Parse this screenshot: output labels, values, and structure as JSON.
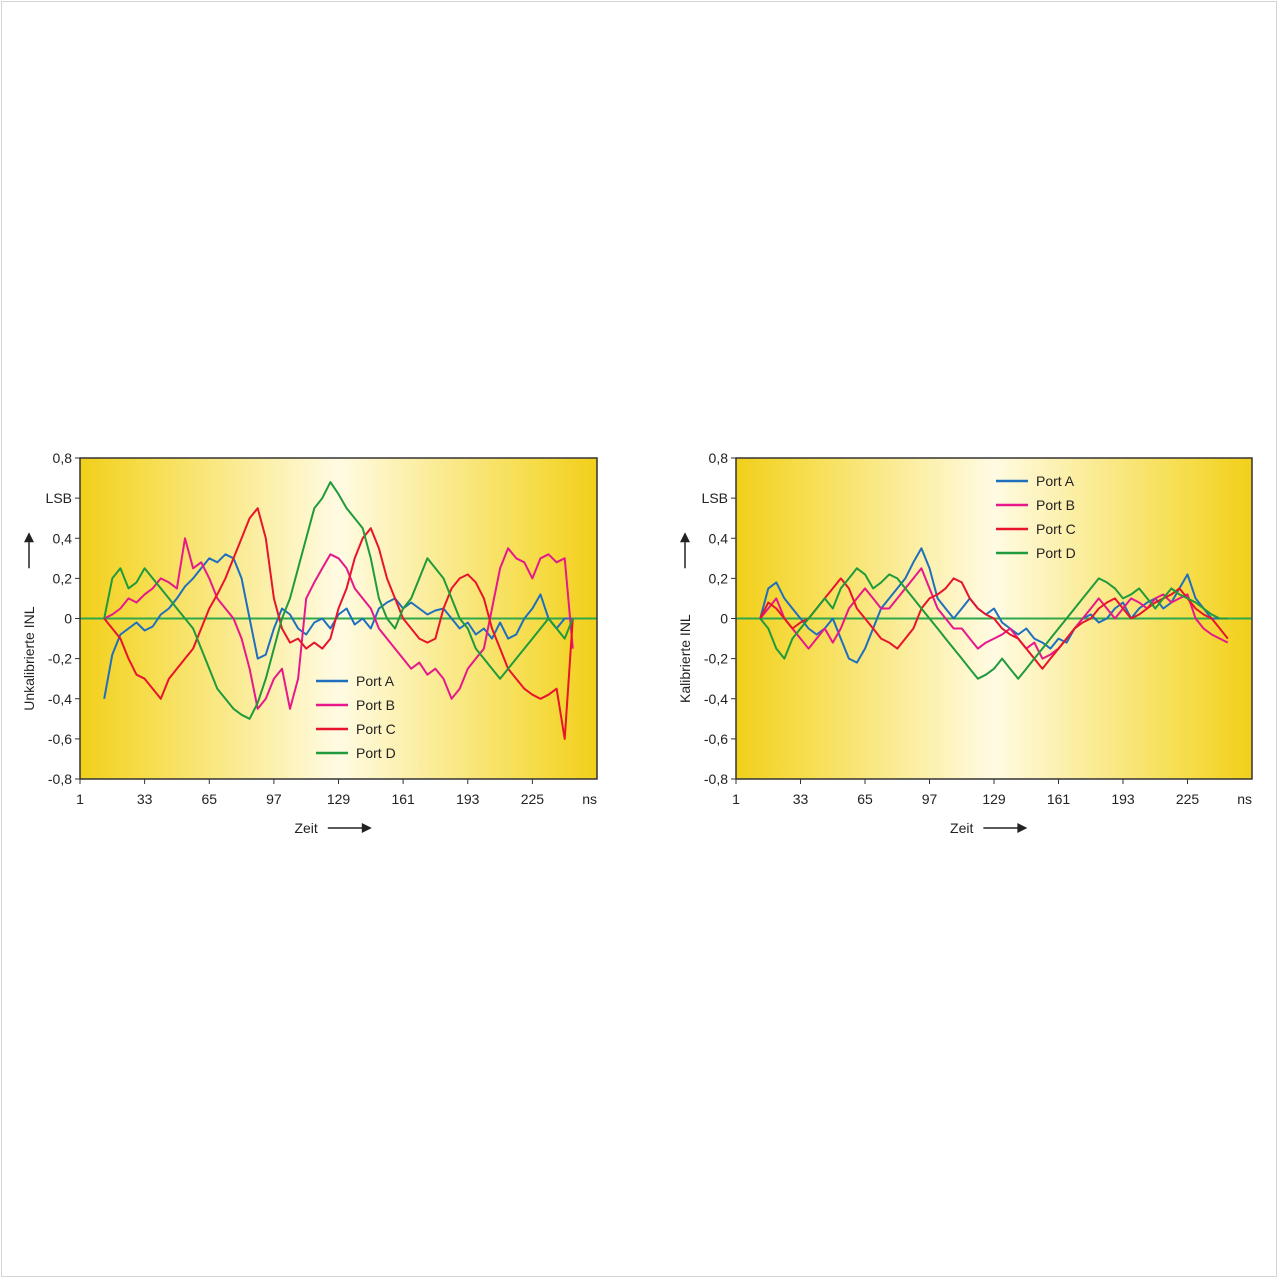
{
  "charts": [
    {
      "ylabel": "Unkalibrierte INL",
      "y_unit": "LSB",
      "xlabel": "Zeit",
      "x_unit": "ns",
      "legend": [
        "Port A",
        "Port B",
        "Port C",
        "Port D"
      ]
    },
    {
      "ylabel": "Kalibrierte INL",
      "y_unit": "LSB",
      "xlabel": "Zeit",
      "x_unit": "ns",
      "legend": [
        "Port A",
        "Port B",
        "Port C",
        "Port D"
      ]
    }
  ],
  "colors": {
    "Port A": "#1f6fbf",
    "Port B": "#e6188c",
    "Port C": "#e8142c",
    "Port D": "#1f9a3c",
    "zero_line": "#2ea84a",
    "panel_edge": "#f2cf1a",
    "panel_center": "#fffbe3"
  },
  "chart_data": [
    {
      "type": "line",
      "x_ticks": [
        1,
        33,
        65,
        97,
        129,
        161,
        193,
        225
      ],
      "y_ticks": [
        -0.8,
        -0.6,
        -0.4,
        -0.2,
        0,
        0.2,
        0.4,
        0.8
      ],
      "y_tick_labels": [
        "-0,8",
        "-0,6",
        "-0,4",
        "-0,2",
        "0",
        "0,2",
        "0,4",
        "0,8"
      ],
      "ylim": [
        -0.8,
        0.8
      ],
      "xlim": [
        1,
        257
      ],
      "legend_position": "bottom-center",
      "x": [
        13,
        17,
        21,
        25,
        29,
        33,
        37,
        41,
        45,
        49,
        53,
        57,
        61,
        65,
        69,
        73,
        77,
        81,
        85,
        89,
        93,
        97,
        101,
        105,
        109,
        113,
        117,
        121,
        125,
        129,
        133,
        137,
        141,
        145,
        149,
        153,
        157,
        161,
        165,
        169,
        173,
        177,
        181,
        185,
        189,
        193,
        197,
        201,
        205,
        209,
        213,
        217,
        221,
        225,
        229,
        233,
        237,
        241,
        245
      ],
      "series": [
        {
          "name": "Port A",
          "values": [
            -0.4,
            -0.18,
            -0.08,
            -0.05,
            -0.02,
            -0.06,
            -0.04,
            0.02,
            0.05,
            0.1,
            0.16,
            0.2,
            0.25,
            0.3,
            0.28,
            0.32,
            0.3,
            0.2,
            0.0,
            -0.2,
            -0.18,
            -0.05,
            0.05,
            0.02,
            -0.05,
            -0.08,
            -0.02,
            0.0,
            -0.05,
            0.02,
            0.05,
            -0.03,
            0.0,
            -0.05,
            0.05,
            0.08,
            0.1,
            0.05,
            0.08,
            0.05,
            0.02,
            0.04,
            0.05,
            0.0,
            -0.05,
            -0.02,
            -0.08,
            -0.05,
            -0.1,
            -0.02,
            -0.1,
            -0.08,
            0.0,
            0.05,
            0.12,
            0.0,
            -0.05,
            0.0,
            0.0
          ]
        },
        {
          "name": "Port B",
          "values": [
            0.0,
            0.02,
            0.05,
            0.1,
            0.08,
            0.12,
            0.15,
            0.2,
            0.18,
            0.15,
            0.4,
            0.25,
            0.28,
            0.2,
            0.1,
            0.05,
            0.0,
            -0.1,
            -0.25,
            -0.45,
            -0.4,
            -0.3,
            -0.25,
            -0.45,
            -0.3,
            0.1,
            0.18,
            0.25,
            0.32,
            0.3,
            0.25,
            0.15,
            0.1,
            0.05,
            -0.05,
            -0.1,
            -0.15,
            -0.2,
            -0.25,
            -0.22,
            -0.28,
            -0.25,
            -0.3,
            -0.4,
            -0.35,
            -0.25,
            -0.2,
            -0.15,
            0.05,
            0.25,
            0.35,
            0.3,
            0.28,
            0.2,
            0.3,
            0.32,
            0.28,
            0.3,
            -0.15
          ]
        },
        {
          "name": "Port C",
          "values": [
            0.0,
            -0.05,
            -0.1,
            -0.2,
            -0.28,
            -0.3,
            -0.35,
            -0.4,
            -0.3,
            -0.25,
            -0.2,
            -0.15,
            -0.05,
            0.05,
            0.12,
            0.2,
            0.3,
            0.4,
            0.5,
            0.55,
            0.4,
            0.1,
            -0.05,
            -0.12,
            -0.1,
            -0.15,
            -0.12,
            -0.15,
            -0.1,
            0.05,
            0.15,
            0.3,
            0.4,
            0.45,
            0.35,
            0.2,
            0.1,
            0.0,
            -0.05,
            -0.1,
            -0.12,
            -0.1,
            0.05,
            0.15,
            0.2,
            0.22,
            0.18,
            0.1,
            -0.05,
            -0.15,
            -0.25,
            -0.3,
            -0.35,
            -0.38,
            -0.4,
            -0.38,
            -0.35,
            -0.6,
            0.0
          ]
        },
        {
          "name": "Port D",
          "values": [
            0.0,
            0.2,
            0.25,
            0.15,
            0.18,
            0.25,
            0.2,
            0.15,
            0.1,
            0.05,
            0.0,
            -0.05,
            -0.15,
            -0.25,
            -0.35,
            -0.4,
            -0.45,
            -0.48,
            -0.5,
            -0.42,
            -0.3,
            -0.15,
            0.0,
            0.1,
            0.25,
            0.4,
            0.55,
            0.6,
            0.68,
            0.62,
            0.55,
            0.5,
            0.45,
            0.3,
            0.1,
            0.0,
            -0.05,
            0.05,
            0.1,
            0.2,
            0.3,
            0.25,
            0.2,
            0.1,
            0.0,
            -0.05,
            -0.15,
            -0.2,
            -0.25,
            -0.3,
            -0.25,
            -0.2,
            -0.15,
            -0.1,
            -0.05,
            0.0,
            -0.05,
            -0.1,
            0.0
          ]
        }
      ]
    },
    {
      "type": "line",
      "x_ticks": [
        1,
        33,
        65,
        97,
        129,
        161,
        193,
        225
      ],
      "y_ticks": [
        -0.8,
        -0.6,
        -0.4,
        -0.2,
        0,
        0.2,
        0.4,
        0.8
      ],
      "y_tick_labels": [
        "-0,8",
        "-0,6",
        "-0,4",
        "-0,2",
        "0",
        "0,2",
        "0,4",
        "0,8"
      ],
      "ylim": [
        -0.8,
        0.8
      ],
      "xlim": [
        1,
        257
      ],
      "legend_position": "top-center",
      "x": [
        13,
        17,
        21,
        25,
        29,
        33,
        37,
        41,
        45,
        49,
        53,
        57,
        61,
        65,
        69,
        73,
        77,
        81,
        85,
        89,
        93,
        97,
        101,
        105,
        109,
        113,
        117,
        121,
        125,
        129,
        133,
        137,
        141,
        145,
        149,
        153,
        157,
        161,
        165,
        169,
        173,
        177,
        181,
        185,
        189,
        193,
        197,
        201,
        205,
        209,
        213,
        217,
        221,
        225,
        229,
        233,
        237,
        241,
        245
      ],
      "series": [
        {
          "name": "Port A",
          "values": [
            0.0,
            0.15,
            0.18,
            0.1,
            0.05,
            0.0,
            -0.05,
            -0.08,
            -0.05,
            0.0,
            -0.1,
            -0.2,
            -0.22,
            -0.15,
            -0.05,
            0.05,
            0.1,
            0.15,
            0.2,
            0.28,
            0.35,
            0.25,
            0.1,
            0.05,
            0.0,
            0.05,
            0.1,
            0.05,
            0.02,
            0.05,
            -0.02,
            -0.05,
            -0.08,
            -0.05,
            -0.1,
            -0.12,
            -0.15,
            -0.1,
            -0.12,
            -0.05,
            0.0,
            0.02,
            -0.02,
            0.0,
            0.05,
            0.08,
            0.0,
            0.05,
            0.08,
            0.1,
            0.05,
            0.08,
            0.15,
            0.22,
            0.1,
            0.05,
            0.0,
            0.0,
            0.0
          ]
        },
        {
          "name": "Port B",
          "values": [
            0.0,
            0.05,
            0.1,
            0.0,
            -0.05,
            -0.1,
            -0.15,
            -0.1,
            -0.05,
            -0.12,
            -0.05,
            0.05,
            0.1,
            0.15,
            0.1,
            0.05,
            0.05,
            0.1,
            0.15,
            0.2,
            0.25,
            0.15,
            0.05,
            0.0,
            -0.05,
            -0.05,
            -0.1,
            -0.15,
            -0.12,
            -0.1,
            -0.08,
            -0.05,
            -0.1,
            -0.15,
            -0.12,
            -0.2,
            -0.18,
            -0.15,
            -0.1,
            -0.05,
            0.0,
            0.05,
            0.1,
            0.05,
            0.0,
            0.05,
            0.1,
            0.08,
            0.05,
            0.1,
            0.12,
            0.08,
            0.1,
            0.12,
            0.0,
            -0.05,
            -0.08,
            -0.1,
            -0.12
          ]
        },
        {
          "name": "Port C",
          "values": [
            0.0,
            0.08,
            0.05,
            0.0,
            -0.05,
            -0.02,
            0.0,
            0.05,
            0.1,
            0.15,
            0.2,
            0.15,
            0.05,
            0.0,
            -0.05,
            -0.1,
            -0.12,
            -0.15,
            -0.1,
            -0.05,
            0.05,
            0.1,
            0.12,
            0.15,
            0.2,
            0.18,
            0.1,
            0.05,
            0.02,
            0.0,
            -0.05,
            -0.08,
            -0.1,
            -0.15,
            -0.2,
            -0.25,
            -0.2,
            -0.15,
            -0.1,
            -0.05,
            -0.02,
            0.0,
            0.05,
            0.08,
            0.1,
            0.05,
            0.0,
            0.02,
            0.05,
            0.08,
            0.1,
            0.12,
            0.15,
            0.1,
            0.05,
            0.02,
            0.0,
            -0.05,
            -0.1
          ]
        },
        {
          "name": "Port D",
          "values": [
            0.0,
            -0.05,
            -0.15,
            -0.2,
            -0.1,
            -0.05,
            0.0,
            0.05,
            0.1,
            0.05,
            0.15,
            0.2,
            0.25,
            0.22,
            0.15,
            0.18,
            0.22,
            0.2,
            0.15,
            0.1,
            0.05,
            0.0,
            -0.05,
            -0.1,
            -0.15,
            -0.2,
            -0.25,
            -0.3,
            -0.28,
            -0.25,
            -0.2,
            -0.25,
            -0.3,
            -0.25,
            -0.2,
            -0.15,
            -0.1,
            -0.05,
            0.0,
            0.05,
            0.1,
            0.15,
            0.2,
            0.18,
            0.15,
            0.1,
            0.12,
            0.15,
            0.1,
            0.05,
            0.1,
            0.15,
            0.12,
            0.1,
            0.08,
            0.05,
            0.02,
            0.0,
            0.0
          ]
        }
      ]
    }
  ]
}
